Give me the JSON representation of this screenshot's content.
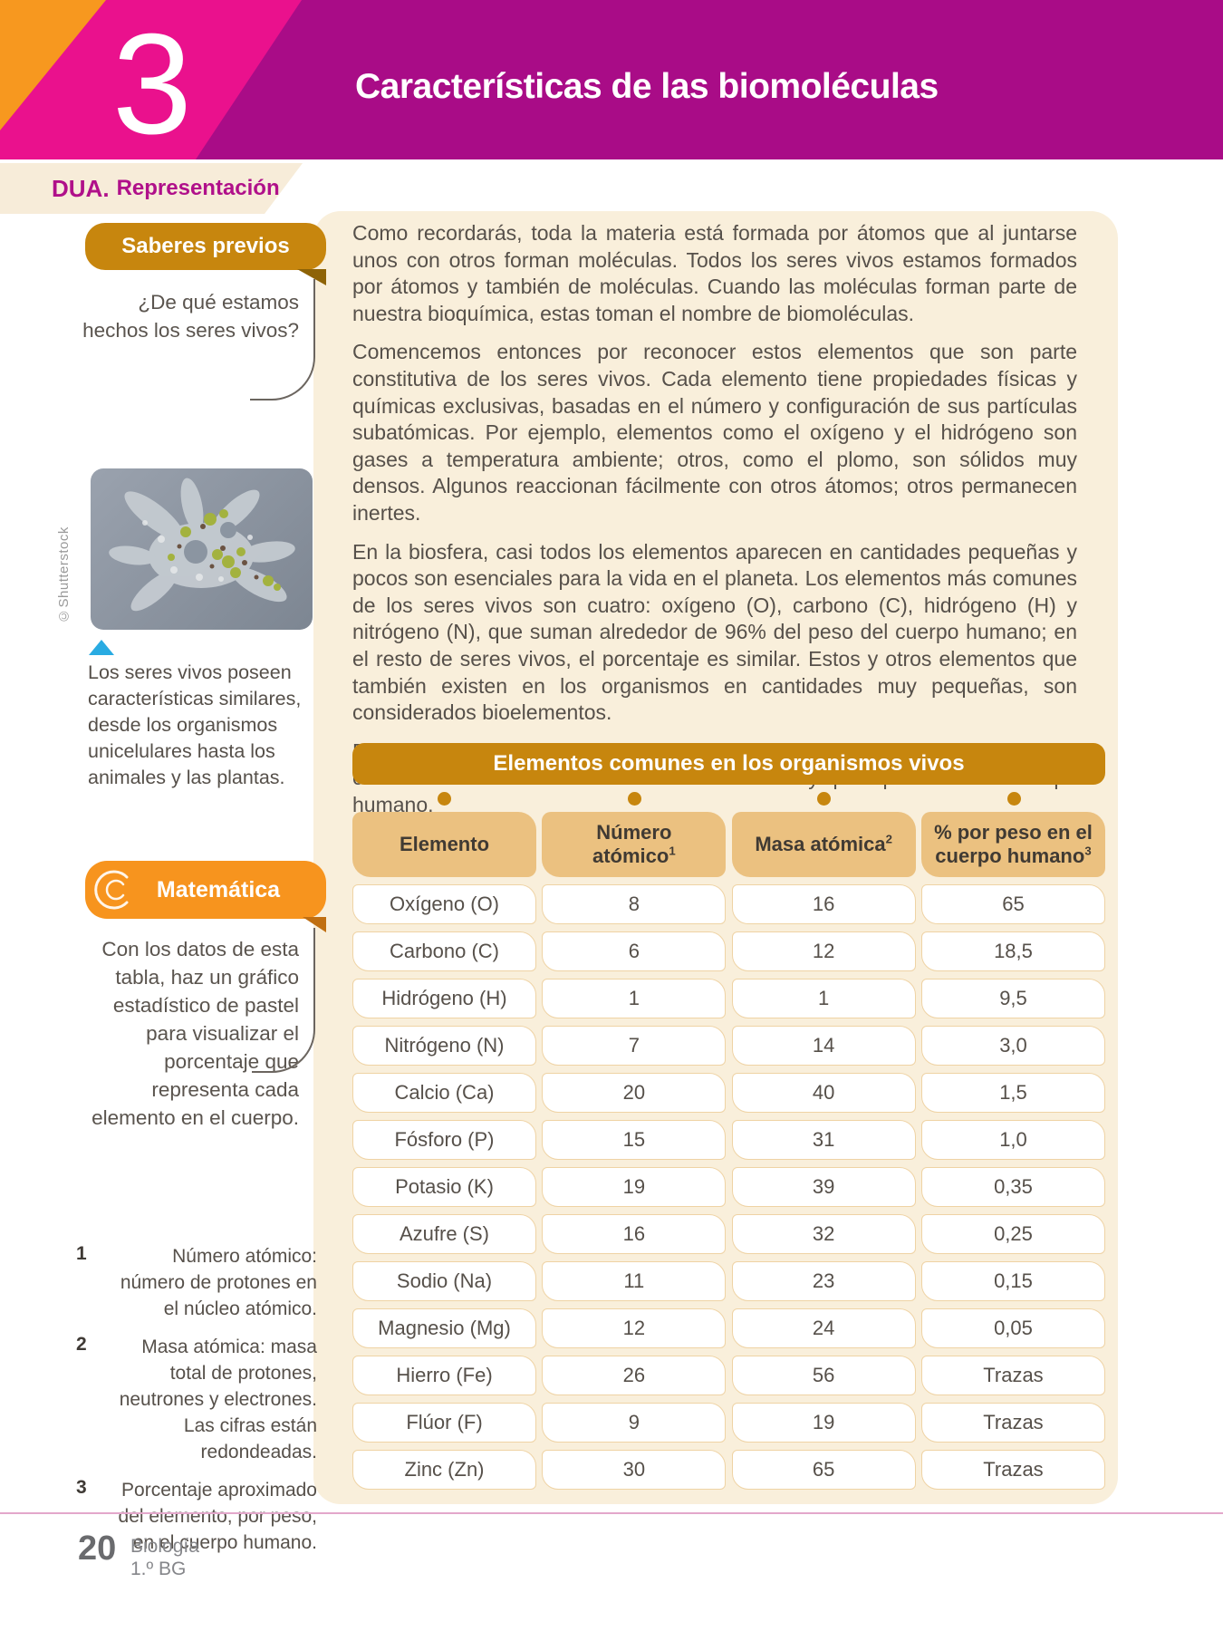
{
  "page": {
    "chapter_number": "3",
    "chapter_title": "Características de las biomoléculas",
    "dua_label": "DUA.",
    "dua_type": "Representación",
    "page_number": "20",
    "subject": "Biología",
    "grade": "1.º BG"
  },
  "sidebar": {
    "saberes_previos": {
      "title": "Saberes previos",
      "question": "¿De qué estamos hechos los seres vivos?"
    },
    "figure": {
      "credit": "©Shutterstock",
      "caption": "Los seres vivos poseen características similares, desde los organismos unicelulares hasta los animales y las plantas."
    },
    "matematica": {
      "title": "Matemática",
      "text": "Con los datos de esta tabla, haz un gráfico estadístico de pastel para visualizar el porcentaje que representa cada elemento en el cuerpo."
    },
    "footnotes": [
      {
        "num": "1",
        "text": "Número atómico: número de protones en el núcleo atómico."
      },
      {
        "num": "2",
        "text": "Masa atómica: masa total de protones, neutrones y electrones. Las cifras están redondeadas."
      },
      {
        "num": "3",
        "text": "Porcentaje aproximado del elemento, por peso, en el cuerpo humano."
      }
    ]
  },
  "main": {
    "paragraphs": [
      "Como recordarás, toda la materia está formada por átomos que al juntarse unos con otros forman moléculas. Todos los seres vivos estamos formados por átomos y también de moléculas. Cuando las moléculas forman parte de nuestra bioquímica, estas toman el nombre de biomoléculas.",
      "Comencemos entonces por reconocer estos elementos que son parte constitutiva de los seres vivos. Cada elemento tiene propiedades físicas y químicas exclusivas, basadas en el número y configuración de sus partículas subatómicas. Por ejemplo, elementos como el oxígeno y el hidrógeno son gases a temperatura ambiente; otros, como el plomo, son sólidos muy densos. Algunos reaccionan fácilmente con otros átomos; otros permanecen inertes.",
      "En la biosfera, casi todos los elementos aparecen en cantidades pequeñas y pocos son esenciales para la vida en el planeta. Los elementos más comunes de los seres vivos son cuatro: oxígeno (O), carbono (C), hidrógeno (H) y nitrógeno (N), que suman alrededor de 96% del peso del cuerpo humano; en el resto de seres vivos, el porcentaje es similar. Estos y otros elementos que también existen en los organismos en cantidades muy pequeñas, son considerados bioelementos.",
      "En la siguiente tabla se encuentran los principales bioelementos que conforman la estructura de los seres vivos y principalmente el cuerpo humano."
    ],
    "table": {
      "title": "Elementos comunes en los organismos vivos",
      "headers": [
        {
          "label": "Elemento",
          "sup": ""
        },
        {
          "label": "Número atómico",
          "sup": "1"
        },
        {
          "label": "Masa atómica",
          "sup": "2"
        },
        {
          "label": "% por peso en el cuerpo humano",
          "sup": "3"
        }
      ],
      "rows": [
        [
          "Oxígeno (O)",
          "8",
          "16",
          "65"
        ],
        [
          "Carbono (C)",
          "6",
          "12",
          "18,5"
        ],
        [
          "Hidrógeno (H)",
          "1",
          "1",
          "9,5"
        ],
        [
          "Nitrógeno (N)",
          "7",
          "14",
          "3,0"
        ],
        [
          "Calcio (Ca)",
          "20",
          "40",
          "1,5"
        ],
        [
          "Fósforo (P)",
          "15",
          "31",
          "1,0"
        ],
        [
          "Potasio (K)",
          "19",
          "39",
          "0,35"
        ],
        [
          "Azufre (S)",
          "16",
          "32",
          "0,25"
        ],
        [
          "Sodio (Na)",
          "11",
          "23",
          "0,15"
        ],
        [
          "Magnesio (Mg)",
          "12",
          "24",
          "0,05"
        ],
        [
          "Hierro (Fe)",
          "26",
          "56",
          "Trazas"
        ],
        [
          "Flúor (F)",
          "9",
          "19",
          "Trazas"
        ],
        [
          "Zinc (Zn)",
          "30",
          "65",
          "Trazas"
        ]
      ]
    }
  },
  "colors": {
    "magenta_dark": "#a90c87",
    "magenta_bright": "#ea118d",
    "orange_corner": "#f7981f",
    "gold": "#c7860e",
    "tan_header": "#ebc180",
    "cream_panel": "#f9efdb",
    "orange_box": "#f7941e",
    "blue_marker": "#29abe2",
    "body_text": "#56504a",
    "pink_rule": "#e3a7cb"
  }
}
